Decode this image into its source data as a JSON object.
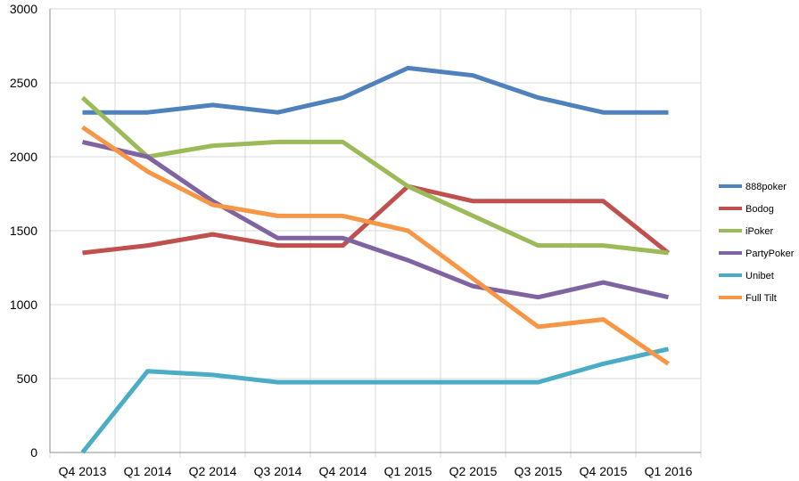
{
  "chart_data": {
    "type": "line",
    "categories": [
      "Q4 2013",
      "Q1 2014",
      "Q2 2014",
      "Q3 2014",
      "Q4 2014",
      "Q1 2015",
      "Q2 2015",
      "Q3 2015",
      "Q4 2015",
      "Q1 2016"
    ],
    "ylim": [
      0,
      3000
    ],
    "yticks": [
      "0",
      "500",
      "1000",
      "1500",
      "2000",
      "2500",
      "3000"
    ],
    "grid": true,
    "legend_position": "right",
    "series": [
      {
        "name": "888poker",
        "color": "#4f81bd",
        "values": [
          2300,
          2300,
          2350,
          2300,
          2400,
          2600,
          2550,
          2400,
          2300,
          2300
        ]
      },
      {
        "name": "Bodog",
        "color": "#c0504d",
        "values": [
          1350,
          1400,
          1475,
          1400,
          1400,
          1800,
          1700,
          1700,
          1700,
          1350
        ]
      },
      {
        "name": "iPoker",
        "color": "#9bbb59",
        "values": [
          2400,
          2000,
          2075,
          2100,
          2100,
          1800,
          1600,
          1400,
          1400,
          1350
        ]
      },
      {
        "name": "PartyPoker",
        "color": "#8064a2",
        "values": [
          2100,
          2000,
          1700,
          1450,
          1450,
          1300,
          1125,
          1050,
          1150,
          1050
        ]
      },
      {
        "name": "Unibet",
        "color": "#4bacc6",
        "values": [
          0,
          550,
          525,
          475,
          475,
          475,
          475,
          475,
          600,
          700
        ]
      },
      {
        "name": "Full Tilt",
        "color": "#f79646",
        "values": [
          2200,
          1900,
          1675,
          1600,
          1600,
          1500,
          1175,
          850,
          900,
          600
        ]
      }
    ]
  }
}
